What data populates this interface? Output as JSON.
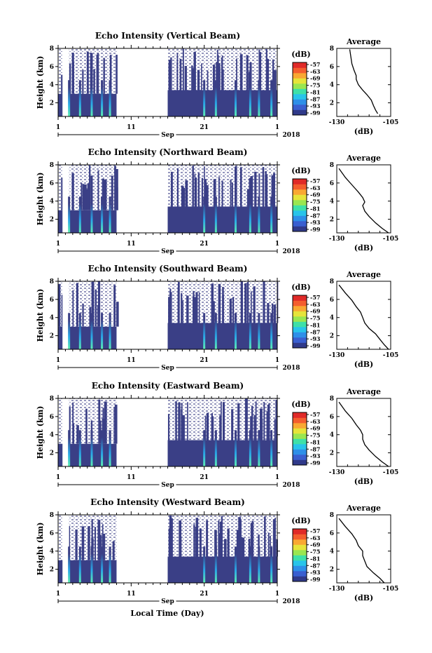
{
  "panels": [
    {
      "title": "Echo Intensity (Vertical Beam)",
      "avg_title": "Average",
      "avg_x": [
        -111,
        -112,
        -113,
        -114,
        -116,
        -118,
        -120,
        -121,
        -121,
        -122,
        -123,
        -124
      ],
      "avg_y": [
        0.8,
        1.2,
        1.7,
        2.3,
        2.9,
        3.4,
        4.0,
        4.6,
        5.0,
        5.6,
        6.3,
        7.9
      ]
    },
    {
      "title": "Echo Intensity (Northward Beam)",
      "avg_title": "Average",
      "avg_x": [
        -106,
        -109,
        -112,
        -115,
        -117,
        -118,
        -117,
        -118,
        -120,
        -123,
        -126,
        -129
      ],
      "avg_y": [
        0.5,
        1.0,
        1.6,
        2.3,
        2.9,
        3.5,
        3.9,
        4.4,
        5.0,
        5.8,
        6.6,
        7.6
      ]
    },
    {
      "title": "Echo Intensity (Southward Beam)",
      "avg_title": "Average",
      "avg_x": [
        -106,
        -108,
        -110,
        -112,
        -115,
        -117,
        -118,
        -119,
        -121,
        -123,
        -126,
        -129
      ],
      "avg_y": [
        0.5,
        1.0,
        1.6,
        2.2,
        2.8,
        3.4,
        4.0,
        4.6,
        5.2,
        5.9,
        6.7,
        7.6
      ]
    },
    {
      "title": "Echo Intensity (Eastward Beam)",
      "avg_title": "Average",
      "avg_x": [
        -106,
        -109,
        -112,
        -115,
        -117,
        -118,
        -118,
        -119,
        -121,
        -123,
        -126,
        -129
      ],
      "avg_y": [
        0.5,
        1.0,
        1.6,
        2.3,
        2.9,
        3.5,
        4.0,
        4.5,
        5.1,
        5.8,
        6.6,
        7.6
      ]
    },
    {
      "title": "Echo Intensity (Westward Beam)",
      "avg_title": "Average",
      "avg_x": [
        -108,
        -110,
        -113,
        -116,
        -117,
        -118,
        -118,
        -120,
        -121,
        -123,
        -126,
        -129
      ],
      "avg_y": [
        0.5,
        1.0,
        1.6,
        2.3,
        2.9,
        3.5,
        4.0,
        4.6,
        5.2,
        5.9,
        6.7,
        7.6
      ]
    }
  ],
  "chart_data": {
    "type": "heatmap",
    "ylabel": "Height (km)",
    "ylim": [
      0.5,
      8
    ],
    "yticks": [
      "2",
      "4",
      "6",
      "8"
    ],
    "xticks": [
      "1",
      "11",
      "21",
      "1"
    ],
    "xday": [
      1,
      11,
      21,
      31
    ],
    "month_label": "Sep",
    "year_label": "2018",
    "xlabel": "Local Time (Day)",
    "colorbar_unit": "(dB)",
    "colorbar_labels": [
      "-57",
      "-63",
      "-69",
      "-75",
      "-81",
      "-87",
      "-93",
      "-99"
    ],
    "colorbar_colors": [
      "#303a8a",
      "#3a5fd0",
      "#2e8fe8",
      "#28c4ea",
      "#3ee0a8",
      "#9ae650",
      "#e6e43a",
      "#f9a832",
      "#f45e2e",
      "#e02a28"
    ],
    "avg_xlabel": "(dB)",
    "avg_xticks": [
      "-130",
      "-105"
    ],
    "avg_yticks": [
      "2",
      "4",
      "6",
      "8"
    ],
    "data_gap_days": [
      9,
      16
    ],
    "spike_days": [
      2.5,
      4.0,
      5.6,
      7.0,
      8.1,
      21.0,
      22.6,
      25.3,
      27.3,
      28.5,
      30.2
    ]
  }
}
